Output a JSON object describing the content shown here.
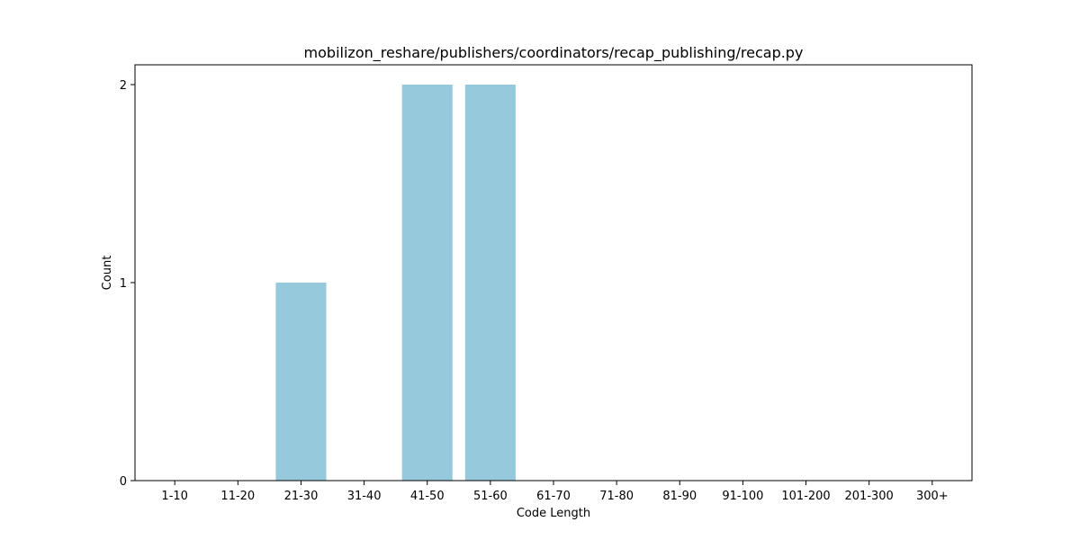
{
  "chart_data": {
    "type": "bar",
    "title": "mobilizon_reshare/publishers/coordinators/recap_publishing/recap.py",
    "xlabel": "Code Length",
    "ylabel": "Count",
    "categories": [
      "1-10",
      "11-20",
      "21-30",
      "31-40",
      "41-50",
      "51-60",
      "61-70",
      "71-80",
      "81-90",
      "91-100",
      "101-200",
      "201-300",
      "300+"
    ],
    "values": [
      0,
      0,
      1,
      0,
      2,
      2,
      0,
      0,
      0,
      0,
      0,
      0,
      0
    ],
    "ylim": [
      0,
      2.1
    ],
    "yticks": [
      0,
      1,
      2
    ],
    "bar_color": "#96c9dc",
    "grid": false,
    "legend": "none"
  }
}
